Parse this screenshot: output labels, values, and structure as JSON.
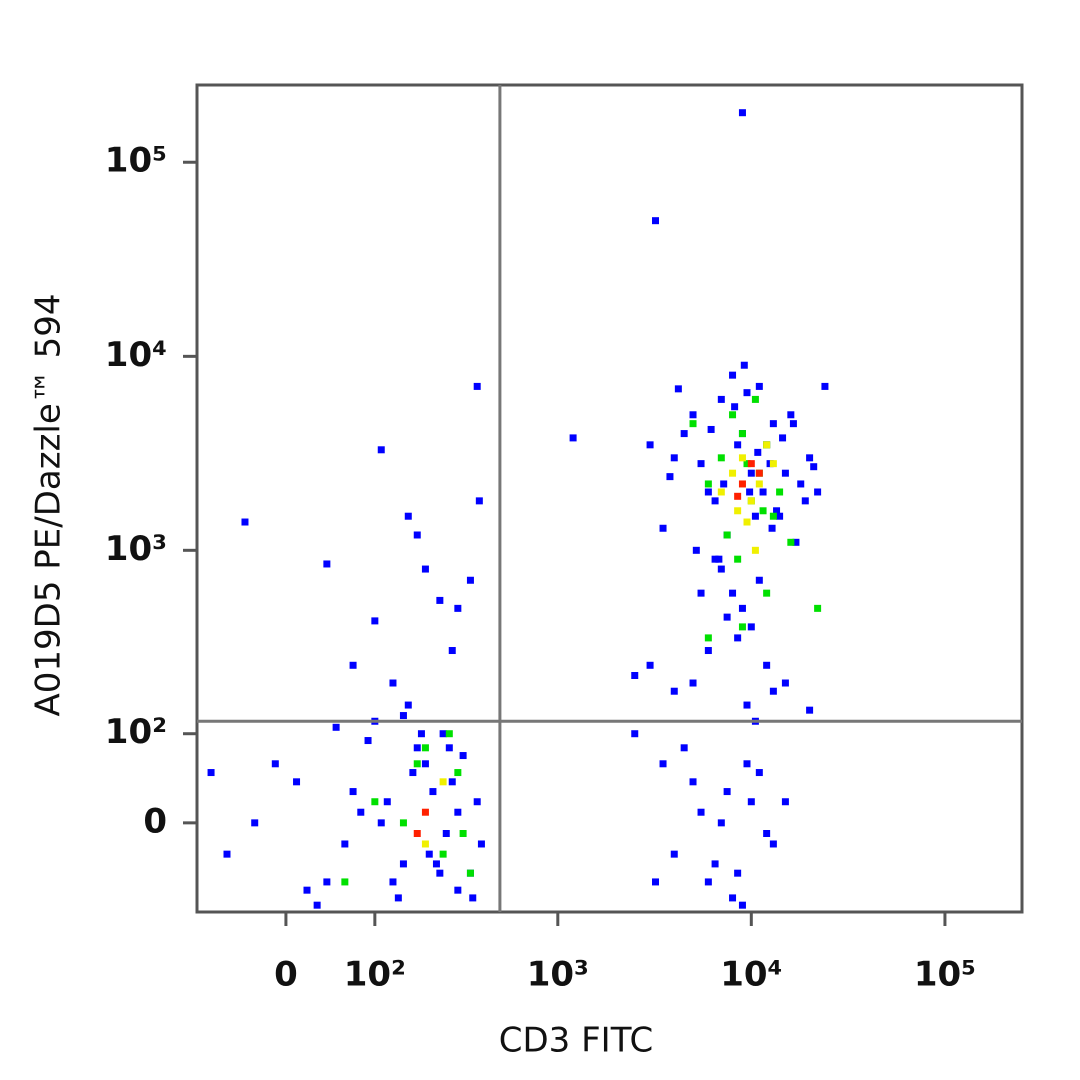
{
  "chart_data": {
    "type": "scatter",
    "xlabel": "CD3 FITC",
    "ylabel": "A019D5 PE/Dazzle™ 594",
    "xscale": "biexponential",
    "yscale": "biexponential",
    "xlim": [
      -100,
      250000
    ],
    "ylim": [
      -100,
      250000
    ],
    "xticks": [
      0,
      {
        "value": 100,
        "label": "10²"
      },
      {
        "value": 1000,
        "label": "10³"
      },
      {
        "value": 10000,
        "label": "10⁴"
      },
      {
        "value": 100000,
        "label": "10⁵"
      }
    ],
    "yticks": [
      0,
      {
        "value": 100,
        "label": "10²"
      },
      {
        "value": 1000,
        "label": "10³"
      },
      {
        "value": 10000,
        "label": "10⁴"
      },
      {
        "value": 100000,
        "label": "10⁵"
      }
    ],
    "gates": {
      "x": 500,
      "y": 120,
      "color": "#777777"
    },
    "grid": false,
    "series": [
      {
        "color": "#0000ff",
        "x": [
          120,
          150,
          200,
          250,
          300,
          80,
          60,
          180,
          220,
          350,
          40,
          10,
          -30,
          -60,
          100,
          140,
          170,
          260,
          320,
          380,
          90,
          130,
          210,
          280,
          50,
          20,
          -10,
          160,
          240,
          300,
          360,
          110,
          190,
          230,
          70,
          150,
          400,
          -80,
          30,
          270,
          -40,
          40,
          100,
          110,
          160,
          180,
          200,
          240,
          280,
          350,
          380,
          390,
          70,
          130,
          300,
          4000,
          5000,
          6000,
          7000,
          8000,
          9000,
          10000,
          11000,
          12000,
          14000,
          16000,
          18000,
          20000,
          24000,
          3500,
          4500,
          5500,
          6500,
          7500,
          8500,
          9500,
          10500,
          13000,
          15000,
          17000,
          22000,
          3000,
          4200,
          6200,
          8200,
          11500,
          12500,
          14500,
          19000,
          5200,
          7200,
          9200,
          10800,
          13500,
          16500,
          3800,
          6800,
          9800,
          12800,
          21000,
          9000,
          3200,
          1200,
          7000,
          8000,
          9000,
          10000,
          6000,
          11000,
          12000,
          5000,
          13000,
          8500,
          9500,
          7500,
          4000,
          3000,
          15000,
          10500,
          6500,
          2500,
          20000,
          5500,
          3500,
          4000,
          5000,
          6000,
          7000,
          8000,
          9000,
          10000,
          11000,
          12000,
          4500,
          6500,
          7500,
          8500,
          9500,
          13000,
          3200,
          5500,
          2500,
          15000
        ],
        "y": [
          20,
          -40,
          60,
          100,
          -70,
          10,
          -20,
          80,
          30,
          -50,
          -60,
          40,
          0,
          -30,
          120,
          -80,
          50,
          -10,
          70,
          20,
          90,
          -60,
          -30,
          40,
          110,
          -70,
          60,
          150,
          -50,
          10,
          -80,
          0,
          100,
          -40,
          30,
          130,
          -20,
          50,
          -90,
          80,
          1400,
          850,
          430,
          3300,
          1500,
          1200,
          800,
          550,
          300,
          700,
          7000,
          1800,
          250,
          200,
          500,
          3000,
          5000,
          2000,
          6000,
          8000,
          4000,
          2500,
          7000,
          3500,
          1500,
          5000,
          2200,
          3000,
          7000,
          1300,
          4000,
          2800,
          1800,
          1200,
          3500,
          6500,
          1500,
          4500,
          2500,
          1100,
          2000,
          3500,
          6800,
          4200,
          5500,
          2000,
          2800,
          3800,
          1800,
          1000,
          2200,
          9000,
          3200,
          1600,
          4500,
          2400,
          900,
          2000,
          1300,
          2700,
          180000,
          50000,
          3800,
          800,
          600,
          500,
          400,
          300,
          700,
          250,
          200,
          180,
          350,
          150,
          450,
          180,
          250,
          200,
          120,
          900,
          220,
          140,
          600,
          60,
          -30,
          40,
          -60,
          0,
          -80,
          -90,
          20,
          50,
          -10,
          80,
          -40,
          30,
          -50,
          60,
          -20,
          -60,
          10,
          100,
          20
        ]
      },
      {
        "color": "#00e000",
        "x": [
          150,
          250,
          300,
          200,
          350,
          100,
          180,
          320,
          270,
          60,
          7000,
          9000,
          11000,
          8000,
          10000,
          12000,
          6000,
          13000,
          9500,
          7500,
          10500,
          14000,
          5000,
          8500,
          11500,
          16000,
          22000,
          6000,
          9000,
          12000
        ],
        "y": [
          0,
          -30,
          50,
          80,
          -50,
          20,
          60,
          -10,
          100,
          -60,
          3000,
          4000,
          2500,
          5000,
          1800,
          3500,
          2200,
          1500,
          2800,
          1200,
          6000,
          2000,
          4500,
          900,
          1600,
          1100,
          500,
          350,
          400,
          600
        ]
      },
      {
        "color": "#f0f000",
        "x": [
          8000,
          9000,
          10000,
          11000,
          12000,
          7000,
          9500,
          10500,
          200,
          250,
          8500,
          13000
        ],
        "y": [
          2500,
          3000,
          1800,
          2200,
          3500,
          2000,
          1400,
          1000,
          -20,
          40,
          1600,
          2800
        ]
      },
      {
        "color": "#ff2000",
        "x": [
          9000,
          10000,
          11000,
          8500,
          200,
          180
        ],
        "y": [
          2200,
          2800,
          2500,
          1900,
          10,
          -10
        ]
      }
    ]
  }
}
